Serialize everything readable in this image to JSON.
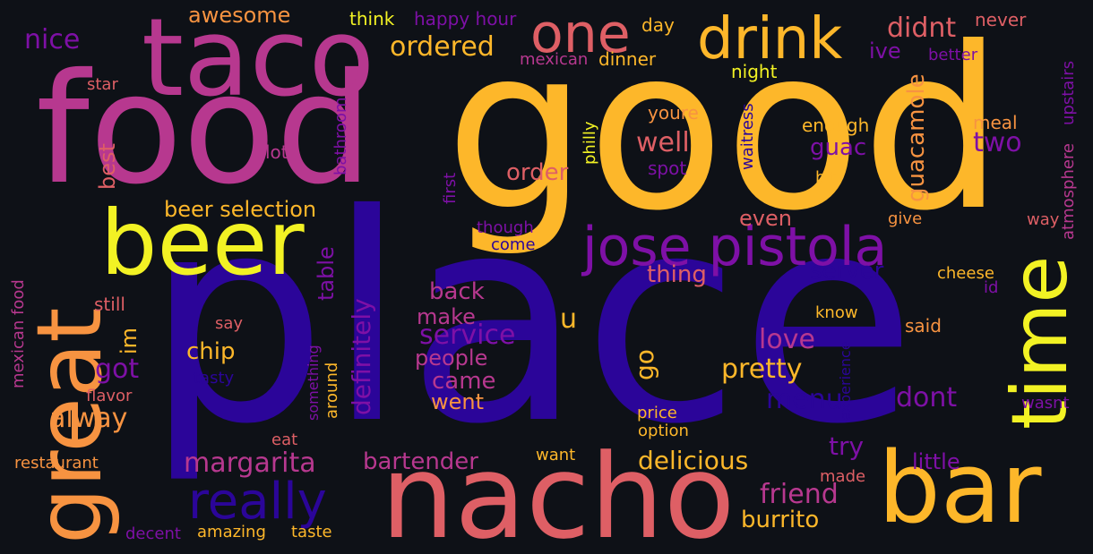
{
  "background": "#0e1117",
  "palette": {
    "deep_indigo": "#2b0599",
    "purple": "#7e10a6",
    "magenta": "#b7388f",
    "coral": "#de5f65",
    "orange": "#f79341",
    "amber": "#fdb72a",
    "yellow": "#f2f224"
  },
  "words": {
    "good": "good",
    "place": "place",
    "food": "food",
    "taco": "taco",
    "nacho": "nacho",
    "beer": "beer",
    "great": "great",
    "bar": "bar",
    "drink": "drink",
    "one": "one",
    "time": "time",
    "jose_pistola": "jose pistola",
    "really": "really",
    "margarita": "margarita",
    "service": "service",
    "beer_selection": "beer selection",
    "ordered": "ordered",
    "awesome": "awesome",
    "nice": "nice",
    "didnt": "didnt",
    "ive": "ive",
    "guacamole": "guacamole",
    "two": "two",
    "well": "well",
    "guac": "guac",
    "order": "order",
    "best": "best",
    "thing": "thing",
    "server": "server",
    "even": "even",
    "back": "back",
    "make": "make",
    "u": "u",
    "love": "love",
    "pretty": "pretty",
    "people": "people",
    "came": "came",
    "went": "went",
    "menu": "menu",
    "dont": "dont",
    "try": "try",
    "delicious": "delicious",
    "little": "little",
    "friend": "friend",
    "burrito": "burrito",
    "bartender": "bartender",
    "chip": "chip",
    "got": "got",
    "alway": "alway",
    "im": "im",
    "still": "still",
    "go": "go",
    "table": "table",
    "definitely": "definitely",
    "think": "think",
    "happy_hour": "happy hour",
    "day": "day",
    "never": "never",
    "mexican": "mexican",
    "dinner": "dinner",
    "night": "night",
    "better": "better",
    "upstairs": "upstairs",
    "star": "star",
    "lot": "lot",
    "bathroom": "bathroom",
    "youre": "youre",
    "waitress": "waitress",
    "enough": "enough",
    "meal": "meal",
    "atmosphere": "atmosphere",
    "philly": "philly",
    "spot": "spot",
    "bit": "bit",
    "first": "first",
    "though": "though",
    "come": "come",
    "give": "give",
    "way": "way",
    "cheese": "cheese",
    "id": "id",
    "say": "say",
    "know": "know",
    "said": "said",
    "mexican_food": "mexican food",
    "flavor": "flavor",
    "tasty": "tasty",
    "around": "around",
    "something": "something",
    "experience": "experience",
    "wasnt": "wasnt",
    "eat": "eat",
    "price": "price",
    "option": "option",
    "restaurant": "restaurant",
    "want": "want",
    "made": "made",
    "decent": "decent",
    "amazing": "amazing",
    "taste": "taste"
  }
}
